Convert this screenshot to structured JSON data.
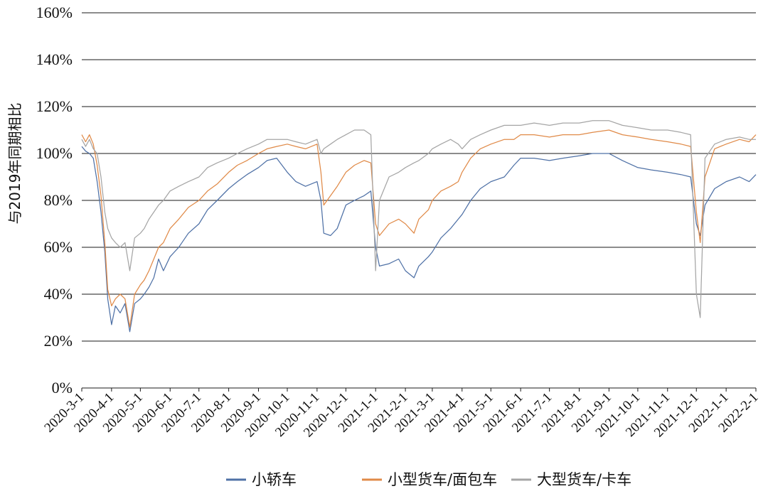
{
  "chart_data": {
    "type": "line",
    "ylabel": "与2019年同期相比",
    "ylim": [
      0,
      160
    ],
    "yticks": [
      "0%",
      "20%",
      "40%",
      "60%",
      "80%",
      "100%",
      "120%",
      "140%",
      "160%"
    ],
    "x_tick_labels": [
      "2020-3-1",
      "2020-4-1",
      "2020-5-1",
      "2020-6-1",
      "2020-7-1",
      "2020-8-1",
      "2020-9-1",
      "2020-10-1",
      "2020-11-1",
      "2020-12-1",
      "2021-1-1",
      "2021-2-1",
      "2021-3-1",
      "2021-4-1",
      "2021-5-1",
      "2021-6-1",
      "2021-7-1",
      "2021-8-1",
      "2021-9-1",
      "2021-10-1",
      "2021-11-1",
      "2021-12-1",
      "2022-1-1",
      "2022-2-1"
    ],
    "grid": true,
    "legend_position": "bottom",
    "series": [
      {
        "name": "小轿车",
        "color": "#4f71a6",
        "points": [
          [
            "2020-03-01",
            103
          ],
          [
            "2020-03-05",
            101
          ],
          [
            "2020-03-09",
            100
          ],
          [
            "2020-03-13",
            98
          ],
          [
            "2020-03-17",
            88
          ],
          [
            "2020-03-21",
            75
          ],
          [
            "2020-03-25",
            58
          ],
          [
            "2020-03-28",
            38
          ],
          [
            "2020-04-01",
            27
          ],
          [
            "2020-04-05",
            35
          ],
          [
            "2020-04-10",
            32
          ],
          [
            "2020-04-15",
            36
          ],
          [
            "2020-04-20",
            24
          ],
          [
            "2020-04-25",
            36
          ],
          [
            "2020-05-01",
            38
          ],
          [
            "2020-05-05",
            40
          ],
          [
            "2020-05-10",
            43
          ],
          [
            "2020-05-15",
            47
          ],
          [
            "2020-05-20",
            55
          ],
          [
            "2020-05-25",
            50
          ],
          [
            "2020-06-01",
            56
          ],
          [
            "2020-06-10",
            60
          ],
          [
            "2020-06-20",
            66
          ],
          [
            "2020-07-01",
            70
          ],
          [
            "2020-07-10",
            76
          ],
          [
            "2020-07-20",
            80
          ],
          [
            "2020-08-01",
            85
          ],
          [
            "2020-08-10",
            88
          ],
          [
            "2020-08-20",
            91
          ],
          [
            "2020-09-01",
            94
          ],
          [
            "2020-09-10",
            97
          ],
          [
            "2020-09-20",
            98
          ],
          [
            "2020-10-01",
            92
          ],
          [
            "2020-10-10",
            88
          ],
          [
            "2020-10-20",
            86
          ],
          [
            "2020-11-01",
            88
          ],
          [
            "2020-11-05",
            80
          ],
          [
            "2020-11-08",
            66
          ],
          [
            "2020-11-15",
            65
          ],
          [
            "2020-11-22",
            68
          ],
          [
            "2020-12-01",
            78
          ],
          [
            "2020-12-10",
            80
          ],
          [
            "2020-12-20",
            82
          ],
          [
            "2020-12-27",
            84
          ],
          [
            "2021-01-01",
            60
          ],
          [
            "2021-01-05",
            52
          ],
          [
            "2021-01-15",
            53
          ],
          [
            "2021-01-25",
            55
          ],
          [
            "2021-02-01",
            50
          ],
          [
            "2021-02-10",
            47
          ],
          [
            "2021-02-15",
            52
          ],
          [
            "2021-02-25",
            56
          ],
          [
            "2021-03-01",
            58
          ],
          [
            "2021-03-10",
            64
          ],
          [
            "2021-03-20",
            68
          ],
          [
            "2021-03-28",
            72
          ],
          [
            "2021-04-01",
            74
          ],
          [
            "2021-04-10",
            80
          ],
          [
            "2021-04-20",
            85
          ],
          [
            "2021-05-01",
            88
          ],
          [
            "2021-05-15",
            90
          ],
          [
            "2021-05-25",
            95
          ],
          [
            "2021-06-01",
            98
          ],
          [
            "2021-06-15",
            98
          ],
          [
            "2021-07-01",
            97
          ],
          [
            "2021-07-15",
            98
          ],
          [
            "2021-08-01",
            99
          ],
          [
            "2021-08-15",
            100
          ],
          [
            "2021-09-01",
            100
          ],
          [
            "2021-09-15",
            97
          ],
          [
            "2021-10-01",
            94
          ],
          [
            "2021-10-15",
            93
          ],
          [
            "2021-11-01",
            92
          ],
          [
            "2021-11-15",
            91
          ],
          [
            "2021-11-25",
            90
          ],
          [
            "2021-12-01",
            70
          ],
          [
            "2021-12-05",
            65
          ],
          [
            "2021-12-10",
            78
          ],
          [
            "2021-12-20",
            85
          ],
          [
            "2022-01-01",
            88
          ],
          [
            "2022-01-15",
            90
          ],
          [
            "2022-01-25",
            88
          ],
          [
            "2022-02-01",
            91
          ]
        ]
      },
      {
        "name": "小型货车/面包车",
        "color": "#e08a48",
        "points": [
          [
            "2020-03-01",
            108
          ],
          [
            "2020-03-05",
            105
          ],
          [
            "2020-03-09",
            108
          ],
          [
            "2020-03-13",
            104
          ],
          [
            "2020-03-17",
            95
          ],
          [
            "2020-03-21",
            82
          ],
          [
            "2020-03-25",
            62
          ],
          [
            "2020-03-28",
            42
          ],
          [
            "2020-04-01",
            35
          ],
          [
            "2020-04-05",
            38
          ],
          [
            "2020-04-10",
            40
          ],
          [
            "2020-04-15",
            38
          ],
          [
            "2020-04-20",
            26
          ],
          [
            "2020-04-25",
            40
          ],
          [
            "2020-05-01",
            44
          ],
          [
            "2020-05-05",
            46
          ],
          [
            "2020-05-10",
            50
          ],
          [
            "2020-05-15",
            55
          ],
          [
            "2020-05-20",
            60
          ],
          [
            "2020-05-25",
            62
          ],
          [
            "2020-06-01",
            68
          ],
          [
            "2020-06-10",
            72
          ],
          [
            "2020-06-20",
            77
          ],
          [
            "2020-07-01",
            80
          ],
          [
            "2020-07-10",
            84
          ],
          [
            "2020-07-20",
            87
          ],
          [
            "2020-08-01",
            92
          ],
          [
            "2020-08-10",
            95
          ],
          [
            "2020-08-20",
            97
          ],
          [
            "2020-09-01",
            100
          ],
          [
            "2020-09-10",
            102
          ],
          [
            "2020-09-20",
            103
          ],
          [
            "2020-10-01",
            104
          ],
          [
            "2020-10-10",
            103
          ],
          [
            "2020-10-20",
            102
          ],
          [
            "2020-11-01",
            104
          ],
          [
            "2020-11-05",
            92
          ],
          [
            "2020-11-08",
            78
          ],
          [
            "2020-11-15",
            82
          ],
          [
            "2020-11-22",
            86
          ],
          [
            "2020-12-01",
            92
          ],
          [
            "2020-12-10",
            95
          ],
          [
            "2020-12-20",
            97
          ],
          [
            "2020-12-27",
            96
          ],
          [
            "2021-01-01",
            70
          ],
          [
            "2021-01-05",
            65
          ],
          [
            "2021-01-15",
            70
          ],
          [
            "2021-01-25",
            72
          ],
          [
            "2021-02-01",
            70
          ],
          [
            "2021-02-10",
            66
          ],
          [
            "2021-02-15",
            72
          ],
          [
            "2021-02-25",
            76
          ],
          [
            "2021-03-01",
            80
          ],
          [
            "2021-03-10",
            84
          ],
          [
            "2021-03-20",
            86
          ],
          [
            "2021-03-28",
            88
          ],
          [
            "2021-04-01",
            92
          ],
          [
            "2021-04-10",
            98
          ],
          [
            "2021-04-20",
            102
          ],
          [
            "2021-05-01",
            104
          ],
          [
            "2021-05-15",
            106
          ],
          [
            "2021-05-25",
            106
          ],
          [
            "2021-06-01",
            108
          ],
          [
            "2021-06-15",
            108
          ],
          [
            "2021-07-01",
            107
          ],
          [
            "2021-07-15",
            108
          ],
          [
            "2021-08-01",
            108
          ],
          [
            "2021-08-15",
            109
          ],
          [
            "2021-09-01",
            110
          ],
          [
            "2021-09-15",
            108
          ],
          [
            "2021-10-01",
            107
          ],
          [
            "2021-10-15",
            106
          ],
          [
            "2021-11-01",
            105
          ],
          [
            "2021-11-15",
            104
          ],
          [
            "2021-11-25",
            103
          ],
          [
            "2021-12-01",
            75
          ],
          [
            "2021-12-05",
            62
          ],
          [
            "2021-12-10",
            90
          ],
          [
            "2021-12-20",
            102
          ],
          [
            "2022-01-01",
            104
          ],
          [
            "2022-01-15",
            106
          ],
          [
            "2022-01-25",
            105
          ],
          [
            "2022-02-01",
            108
          ]
        ]
      },
      {
        "name": "大型货车/卡车",
        "color": "#a5a5a5",
        "points": [
          [
            "2020-03-01",
            106
          ],
          [
            "2020-03-05",
            103
          ],
          [
            "2020-03-09",
            106
          ],
          [
            "2020-03-13",
            102
          ],
          [
            "2020-03-17",
            100
          ],
          [
            "2020-03-21",
            90
          ],
          [
            "2020-03-25",
            75
          ],
          [
            "2020-03-28",
            68
          ],
          [
            "2020-04-01",
            64
          ],
          [
            "2020-04-05",
            62
          ],
          [
            "2020-04-10",
            60
          ],
          [
            "2020-04-15",
            62
          ],
          [
            "2020-04-20",
            50
          ],
          [
            "2020-04-25",
            64
          ],
          [
            "2020-05-01",
            66
          ],
          [
            "2020-05-05",
            68
          ],
          [
            "2020-05-10",
            72
          ],
          [
            "2020-05-15",
            75
          ],
          [
            "2020-05-20",
            78
          ],
          [
            "2020-05-25",
            80
          ],
          [
            "2020-06-01",
            84
          ],
          [
            "2020-06-10",
            86
          ],
          [
            "2020-06-20",
            88
          ],
          [
            "2020-07-01",
            90
          ],
          [
            "2020-07-10",
            94
          ],
          [
            "2020-07-20",
            96
          ],
          [
            "2020-08-01",
            98
          ],
          [
            "2020-08-10",
            100
          ],
          [
            "2020-08-20",
            102
          ],
          [
            "2020-09-01",
            104
          ],
          [
            "2020-09-10",
            106
          ],
          [
            "2020-09-20",
            106
          ],
          [
            "2020-10-01",
            106
          ],
          [
            "2020-10-10",
            105
          ],
          [
            "2020-10-20",
            104
          ],
          [
            "2020-11-01",
            106
          ],
          [
            "2020-11-05",
            100
          ],
          [
            "2020-11-08",
            102
          ],
          [
            "2020-11-15",
            104
          ],
          [
            "2020-11-22",
            106
          ],
          [
            "2020-12-01",
            108
          ],
          [
            "2020-12-10",
            110
          ],
          [
            "2020-12-20",
            110
          ],
          [
            "2020-12-27",
            108
          ],
          [
            "2021-01-01",
            50
          ],
          [
            "2021-01-05",
            80
          ],
          [
            "2021-01-15",
            90
          ],
          [
            "2021-01-25",
            92
          ],
          [
            "2021-02-01",
            94
          ],
          [
            "2021-02-10",
            96
          ],
          [
            "2021-02-15",
            97
          ],
          [
            "2021-02-25",
            100
          ],
          [
            "2021-03-01",
            102
          ],
          [
            "2021-03-10",
            104
          ],
          [
            "2021-03-20",
            106
          ],
          [
            "2021-03-28",
            104
          ],
          [
            "2021-04-01",
            102
          ],
          [
            "2021-04-10",
            106
          ],
          [
            "2021-04-20",
            108
          ],
          [
            "2021-05-01",
            110
          ],
          [
            "2021-05-15",
            112
          ],
          [
            "2021-05-25",
            112
          ],
          [
            "2021-06-01",
            112
          ],
          [
            "2021-06-15",
            113
          ],
          [
            "2021-07-01",
            112
          ],
          [
            "2021-07-15",
            113
          ],
          [
            "2021-08-01",
            113
          ],
          [
            "2021-08-15",
            114
          ],
          [
            "2021-09-01",
            114
          ],
          [
            "2021-09-15",
            112
          ],
          [
            "2021-10-01",
            111
          ],
          [
            "2021-10-15",
            110
          ],
          [
            "2021-11-01",
            110
          ],
          [
            "2021-11-15",
            109
          ],
          [
            "2021-11-25",
            108
          ],
          [
            "2021-12-01",
            40
          ],
          [
            "2021-12-05",
            30
          ],
          [
            "2021-12-10",
            98
          ],
          [
            "2021-12-20",
            104
          ],
          [
            "2022-01-01",
            106
          ],
          [
            "2022-01-15",
            107
          ],
          [
            "2022-01-25",
            106
          ],
          [
            "2022-02-01",
            106
          ]
        ]
      }
    ]
  }
}
